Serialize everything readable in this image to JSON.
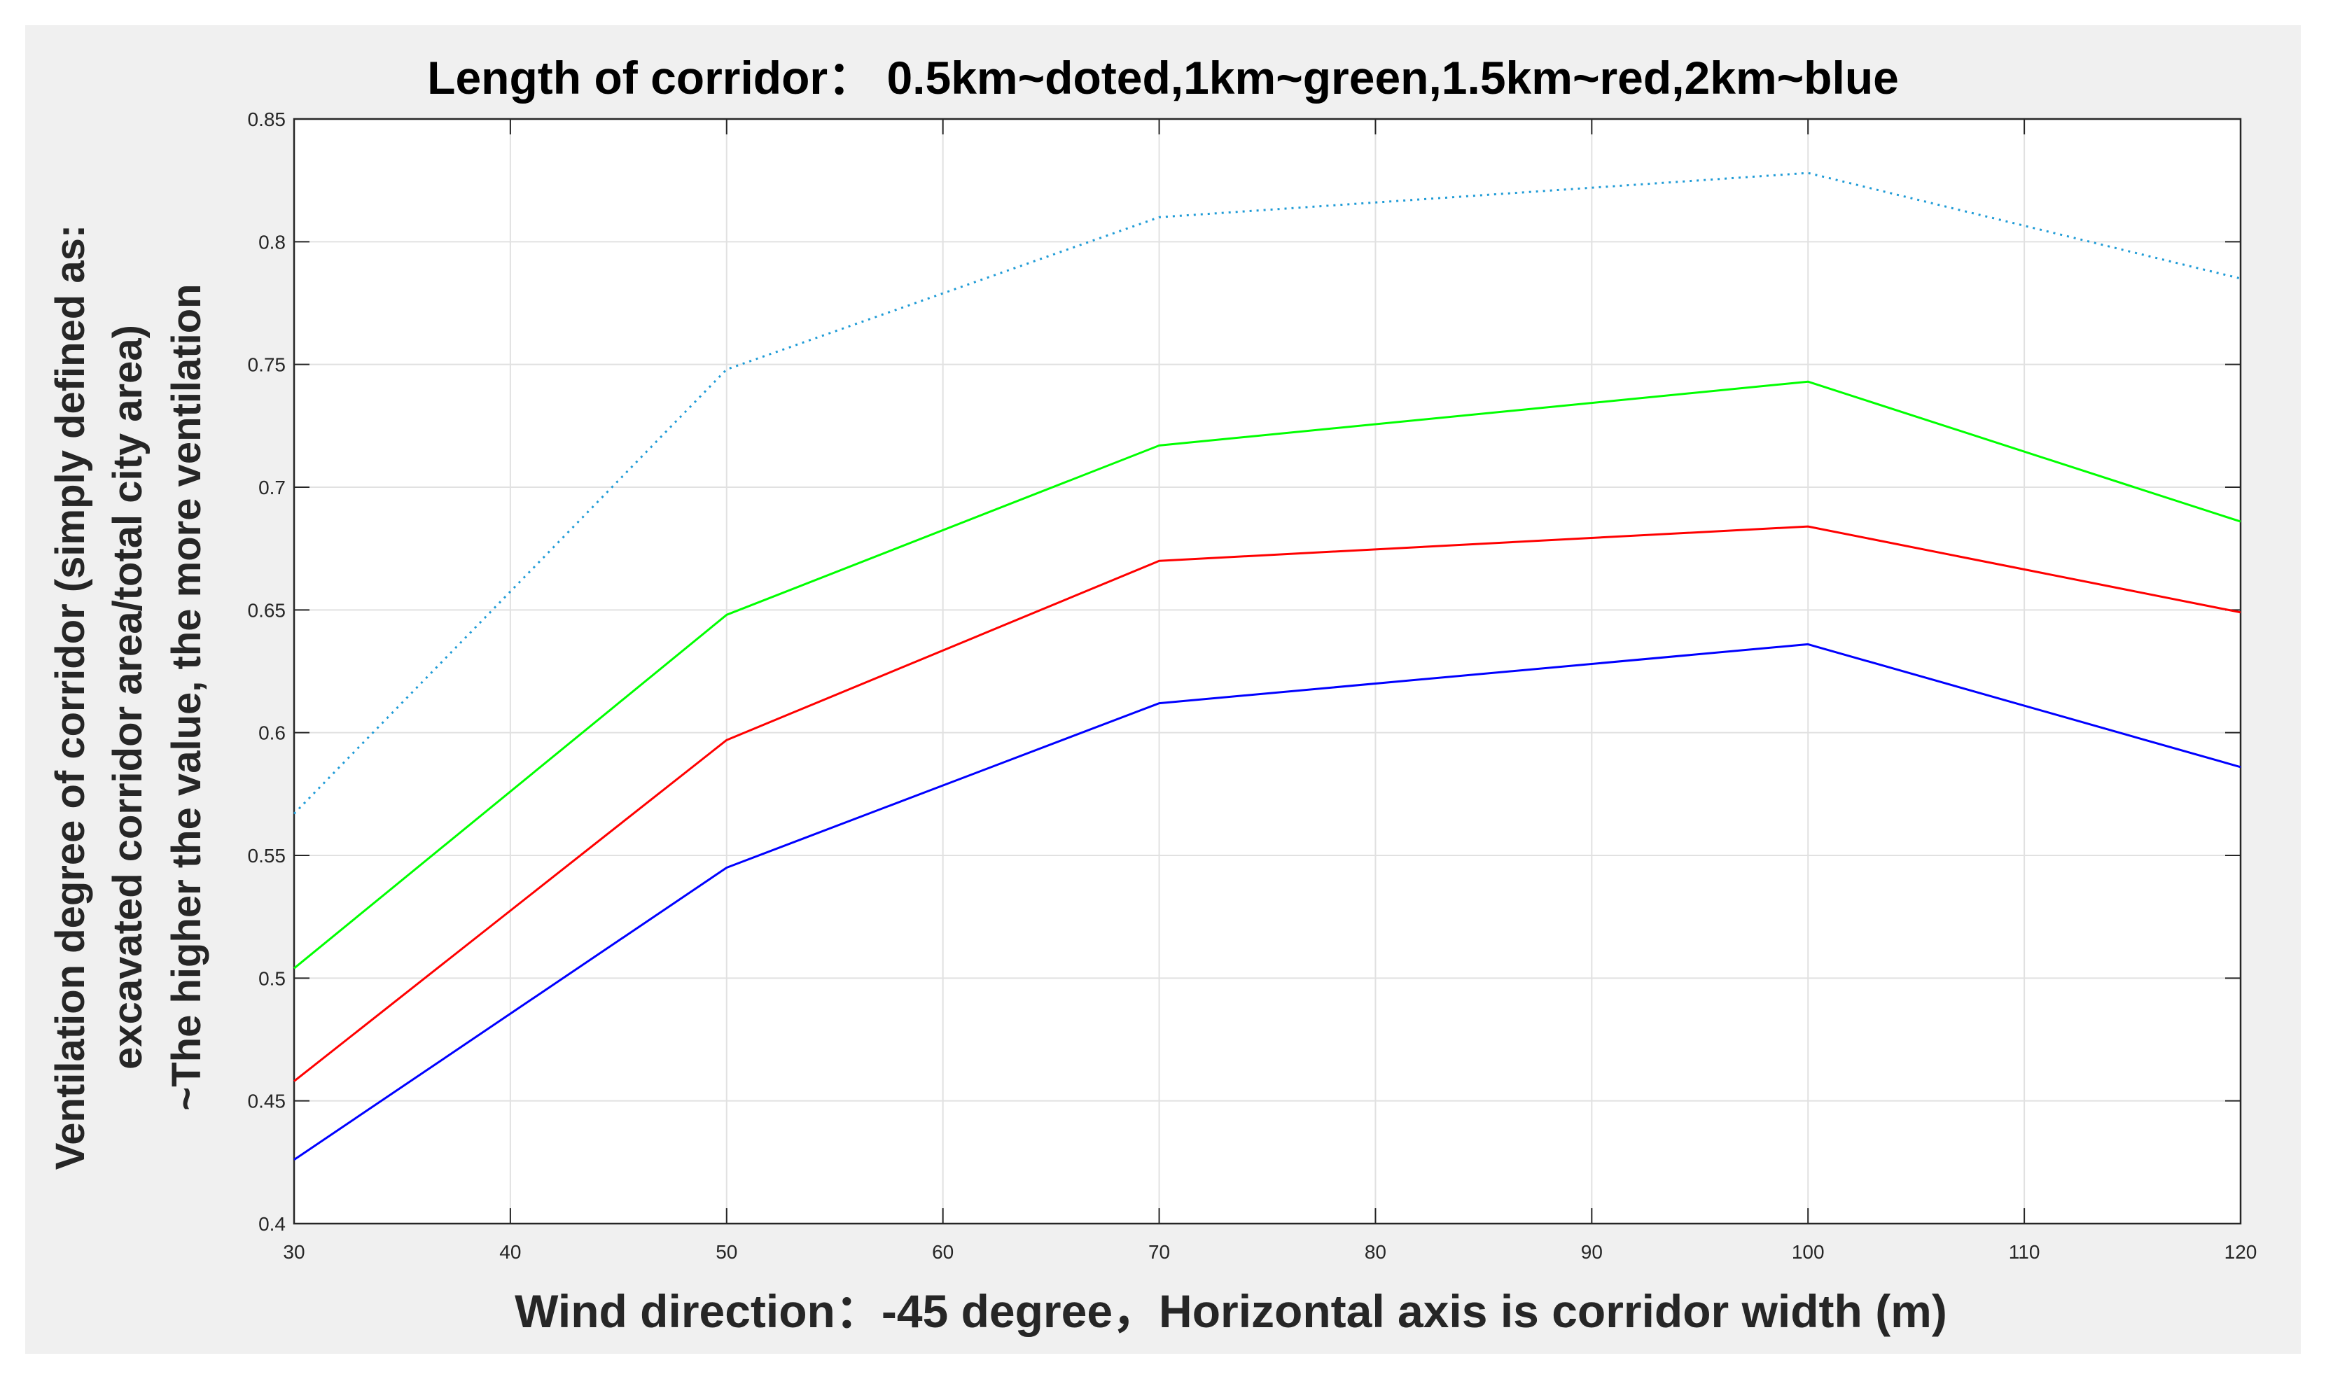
{
  "chart_data": {
    "type": "line",
    "title": "Length of corridor：  0.5km~doted,1km~green,1.5km~red,2km~blue",
    "xlabel": "Wind direction：-45 degree，Horizontal axis is corridor width (m)",
    "ylabel_lines": [
      "Ventilation degree of corridor (simply defined as:",
      "excavated corridor area/total city area)",
      "~The higher the value, the more ventilation"
    ],
    "xlim": [
      30,
      120
    ],
    "ylim": [
      0.4,
      0.85
    ],
    "xticks": [
      "30",
      "40",
      "50",
      "60",
      "70",
      "80",
      "90",
      "100",
      "110",
      "120"
    ],
    "yticks": [
      "0.4",
      "0.45",
      "0.5",
      "0.55",
      "0.6",
      "0.65",
      "0.7",
      "0.75",
      "0.8",
      "0.85"
    ],
    "grid": true,
    "x": [
      30,
      50,
      70,
      100,
      120
    ],
    "series": [
      {
        "color": "#1f9bd6",
        "style": "dotted",
        "values": [
          0.567,
          0.748,
          0.81,
          0.828,
          0.785
        ]
      },
      {
        "color": "#00ff00",
        "style": "solid",
        "values": [
          0.504,
          0.648,
          0.717,
          0.743,
          0.686
        ]
      },
      {
        "color": "#ff0000",
        "style": "solid",
        "values": [
          0.458,
          0.597,
          0.67,
          0.684,
          0.649
        ]
      },
      {
        "color": "#0000ff",
        "style": "solid",
        "values": [
          0.426,
          0.545,
          0.612,
          0.636,
          0.586
        ]
      }
    ]
  }
}
